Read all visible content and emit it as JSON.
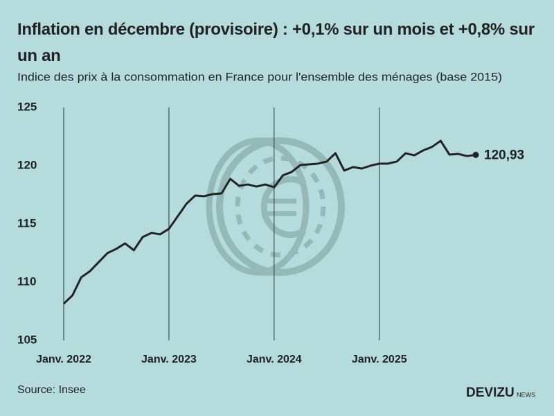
{
  "chart_data": {
    "type": "line",
    "title": "Inflation en décembre (provisoire) : +0,1% sur un mois et +0,8% sur un an",
    "subtitle": "Indice des prix à la consommation en France pour l'ensemble des ménages (base 2015)",
    "source": "Source: Insee",
    "brand": "DEVIZU",
    "brand_suffix": "NEWS",
    "background": "#b5dcdc",
    "categories": [
      "Janv. 2022",
      null,
      null,
      null,
      null,
      null,
      null,
      null,
      null,
      null,
      null,
      null,
      "Janv. 2023",
      null,
      null,
      null,
      null,
      null,
      null,
      null,
      null,
      null,
      null,
      null,
      "Janv. 2024",
      null,
      null,
      null,
      null,
      null,
      null,
      null,
      null,
      null,
      null,
      null,
      "Janv. 2025",
      null,
      null,
      null,
      null,
      null,
      null,
      null,
      null,
      null,
      null,
      null
    ],
    "series": [
      {
        "name": "Indice des prix",
        "color": "#222222",
        "values": [
          108.15,
          108.87,
          110.42,
          110.95,
          111.73,
          112.5,
          112.86,
          113.33,
          112.74,
          113.87,
          114.23,
          114.11,
          114.58,
          115.65,
          116.73,
          117.44,
          117.38,
          117.56,
          117.62,
          118.87,
          118.27,
          118.39,
          118.21,
          118.39,
          118.15,
          119.17,
          119.46,
          120.06,
          120.12,
          120.18,
          120.36,
          121.07,
          119.58,
          119.88,
          119.76,
          120.0,
          120.18,
          120.18,
          120.36,
          121.07,
          120.89,
          121.31,
          121.61,
          122.14,
          120.95,
          121.01,
          120.83,
          120.93
        ],
        "value_labels": [
          null,
          null,
          null,
          null,
          null,
          null,
          null,
          null,
          null,
          null,
          null,
          null,
          null,
          null,
          null,
          null,
          null,
          null,
          null,
          null,
          null,
          null,
          null,
          null,
          null,
          null,
          null,
          null,
          null,
          null,
          null,
          null,
          null,
          null,
          null,
          null,
          null,
          null,
          null,
          null,
          null,
          null,
          null,
          null,
          null,
          null,
          null,
          "120,93"
        ]
      }
    ],
    "ylim": [
      105,
      125
    ],
    "yticks": [
      105,
      110,
      115,
      120,
      125
    ],
    "grid": false
  }
}
